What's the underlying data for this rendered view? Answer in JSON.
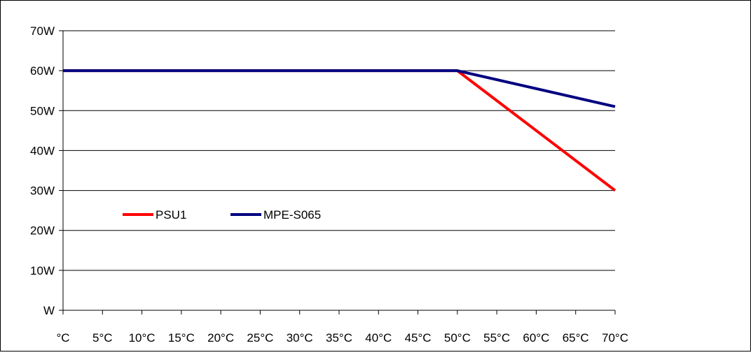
{
  "chart_data": {
    "type": "line",
    "title": "",
    "xlabel": "",
    "ylabel": "",
    "x": [
      0,
      5,
      10,
      15,
      20,
      25,
      30,
      35,
      40,
      45,
      50,
      55,
      60,
      65,
      70
    ],
    "x_tick_labels": [
      "°C",
      "5°C",
      "10°C",
      "15°C",
      "20°C",
      "25°C",
      "30°C",
      "35°C",
      "40°C",
      "45°C",
      "50°C",
      "55°C",
      "60°C",
      "65°C",
      "70°C"
    ],
    "y_ticks": [
      0,
      10,
      20,
      30,
      40,
      50,
      60,
      70
    ],
    "y_tick_labels": [
      "W",
      "10W",
      "20W",
      "30W",
      "40W",
      "50W",
      "60W",
      "70W"
    ],
    "xlim": [
      0,
      70
    ],
    "ylim": [
      0,
      70
    ],
    "grid": "horizontal",
    "legend_position": "inside-left",
    "series": [
      {
        "name": "PSU1",
        "color": "#ff0000",
        "points": [
          [
            0,
            60
          ],
          [
            50,
            60
          ],
          [
            70,
            30
          ]
        ]
      },
      {
        "name": "MPE-S065",
        "color": "#000080",
        "points": [
          [
            0,
            60
          ],
          [
            50,
            60
          ],
          [
            70,
            51
          ]
        ]
      }
    ]
  }
}
